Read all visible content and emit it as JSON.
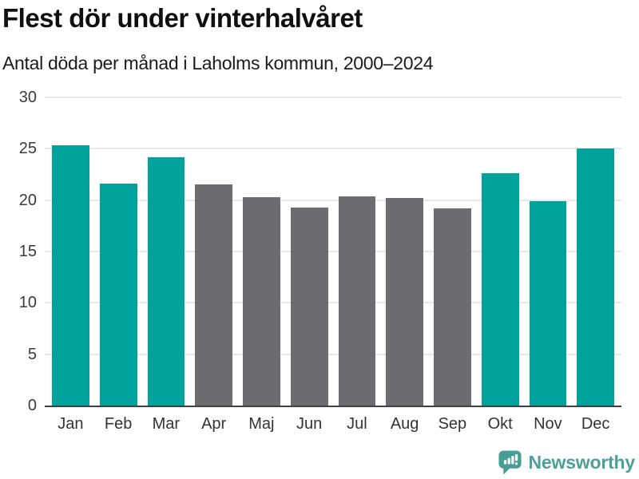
{
  "header": {
    "title": "Flest dör under vinterhalvåret",
    "subtitle": "Antal döda per månad i Laholms kommun, 2000–2024"
  },
  "chart_data": {
    "type": "bar",
    "title": "Flest dör under vinterhalvåret",
    "subtitle": "Antal döda per månad i Laholms kommun, 2000–2024",
    "categories": [
      "Jan",
      "Feb",
      "Mar",
      "Apr",
      "Maj",
      "Jun",
      "Jul",
      "Aug",
      "Sep",
      "Okt",
      "Nov",
      "Dec"
    ],
    "values": [
      25.3,
      21.6,
      24.2,
      21.5,
      20.3,
      19.3,
      20.4,
      20.2,
      19.2,
      22.6,
      19.9,
      25.0
    ],
    "bar_colors": [
      "#00a39b",
      "#00a39b",
      "#00a39b",
      "#6c6c71",
      "#6c6c71",
      "#6c6c71",
      "#6c6c71",
      "#6c6c71",
      "#6c6c71",
      "#00a39b",
      "#00a39b",
      "#00a39b"
    ],
    "highlighted_months": [
      "Jan",
      "Feb",
      "Mar",
      "Okt",
      "Nov",
      "Dec"
    ],
    "xlabel": "",
    "ylabel": "",
    "ylim": [
      0,
      30
    ],
    "yticks": [
      0,
      5,
      10,
      15,
      20,
      25,
      30
    ],
    "grid": "horizontal",
    "legend": "none"
  },
  "colors": {
    "highlight_bar": "#00a39b",
    "muted_bar": "#6c6c71",
    "gridline": "#e8e8e8",
    "axis_line": "#414141",
    "tick_label": "#3b3b3b",
    "title_text": "#0f0f0f",
    "brand": "#4da09a"
  },
  "footer": {
    "brand_label": "Newsworthy",
    "icon": "bar-chart-speech-bubble-icon"
  }
}
